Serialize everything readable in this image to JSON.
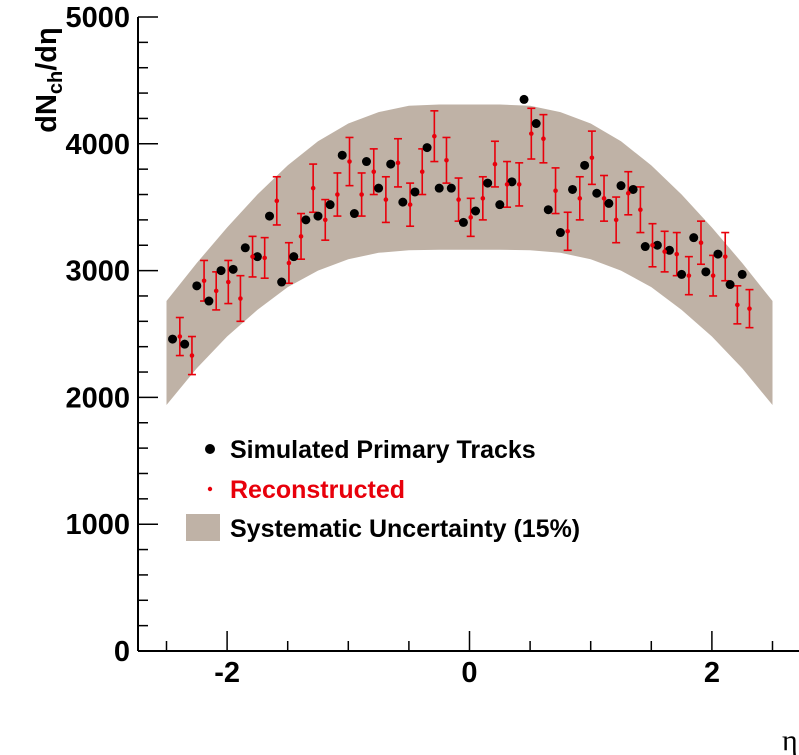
{
  "chart_data": {
    "type": "scatter",
    "ylabel": {
      "main": "dN",
      "sub": "ch",
      "tail": "/dη"
    },
    "xlabel": "η",
    "xlim": [
      -2.5,
      2.5
    ],
    "ylim": [
      0,
      5000
    ],
    "x_ticks": [
      -2,
      0,
      2
    ],
    "y_ticks": [
      0,
      1000,
      2000,
      3000,
      4000,
      5000
    ],
    "colors": {
      "simulated": "#000000",
      "reconstructed": "#e8000b",
      "band": "#bfb2a6"
    },
    "legend": {
      "simulated": "Simulated Primary Tracks",
      "reconstructed": "Reconstructed",
      "band": "Systematic Uncertainty (15%)"
    },
    "series": [
      {
        "name": "Simulated Primary Tracks",
        "x": [
          -2.45,
          -2.35,
          -2.25,
          -2.15,
          -2.05,
          -1.95,
          -1.85,
          -1.75,
          -1.65,
          -1.55,
          -1.45,
          -1.35,
          -1.25,
          -1.15,
          -1.05,
          -0.95,
          -0.85,
          -0.75,
          -0.65,
          -0.55,
          -0.45,
          -0.35,
          -0.25,
          -0.15,
          -0.05,
          0.05,
          0.15,
          0.25,
          0.35,
          0.45,
          0.55,
          0.65,
          0.75,
          0.85,
          0.95,
          1.05,
          1.15,
          1.25,
          1.35,
          1.45,
          1.55,
          1.65,
          1.75,
          1.85,
          1.95,
          2.05,
          2.15,
          2.25
        ],
        "y": [
          2460,
          2420,
          2880,
          2760,
          3000,
          3010,
          3180,
          3110,
          3430,
          2910,
          3110,
          3400,
          3430,
          3520,
          3910,
          3450,
          3860,
          3650,
          3840,
          3540,
          3620,
          3970,
          3650,
          3650,
          3380,
          3470,
          3690,
          3520,
          3700,
          4350,
          4160,
          3480,
          3300,
          3640,
          3830,
          3610,
          3530,
          3670,
          3640,
          3190,
          3200,
          3160,
          2970,
          3260,
          2990,
          3130,
          2890,
          2970
        ]
      },
      {
        "name": "Reconstructed",
        "x": [
          -2.45,
          -2.35,
          -2.25,
          -2.15,
          -2.05,
          -1.95,
          -1.85,
          -1.75,
          -1.65,
          -1.55,
          -1.45,
          -1.35,
          -1.25,
          -1.15,
          -1.05,
          -0.95,
          -0.85,
          -0.75,
          -0.65,
          -0.55,
          -0.45,
          -0.35,
          -0.25,
          -0.15,
          -0.05,
          0.05,
          0.15,
          0.25,
          0.35,
          0.45,
          0.55,
          0.65,
          0.75,
          0.85,
          0.95,
          1.05,
          1.15,
          1.25,
          1.35,
          1.45,
          1.55,
          1.65,
          1.75,
          1.85,
          1.95,
          2.05,
          2.15,
          2.25
        ],
        "y": [
          2480,
          2330,
          2920,
          2840,
          2910,
          2780,
          3110,
          3100,
          3550,
          3060,
          3270,
          3650,
          3400,
          3600,
          3860,
          3600,
          3780,
          3560,
          3850,
          3520,
          3780,
          4060,
          3870,
          3560,
          3420,
          3570,
          3840,
          3680,
          3680,
          4080,
          4040,
          3630,
          3310,
          3570,
          3890,
          3570,
          3400,
          3610,
          3480,
          3200,
          3150,
          3130,
          2960,
          3220,
          2960,
          3110,
          2730,
          2700
        ],
        "err": [
          150,
          150,
          160,
          150,
          170,
          180,
          160,
          160,
          190,
          160,
          180,
          190,
          160,
          170,
          190,
          170,
          180,
          180,
          190,
          170,
          180,
          200,
          180,
          170,
          150,
          170,
          180,
          180,
          170,
          200,
          190,
          180,
          150,
          170,
          210,
          180,
          180,
          170,
          180,
          170,
          160,
          170,
          150,
          170,
          160,
          190,
          150,
          150
        ]
      }
    ],
    "band": {
      "x": [
        -2.5,
        -2.25,
        -2.0,
        -1.75,
        -1.5,
        -1.25,
        -1.0,
        -0.75,
        -0.5,
        -0.25,
        0,
        0.25,
        0.5,
        0.75,
        1.0,
        1.25,
        1.5,
        1.75,
        2.0,
        2.25,
        2.5
      ],
      "upper": [
        2760,
        3060,
        3340,
        3600,
        3830,
        4020,
        4160,
        4250,
        4300,
        4310,
        4310,
        4310,
        4300,
        4250,
        4160,
        4020,
        3830,
        3600,
        3340,
        3060,
        2760
      ],
      "lower": [
        1940,
        2230,
        2480,
        2690,
        2870,
        3000,
        3090,
        3140,
        3160,
        3165,
        3165,
        3165,
        3160,
        3140,
        3090,
        3000,
        2870,
        2690,
        2480,
        2230,
        1940
      ]
    }
  }
}
